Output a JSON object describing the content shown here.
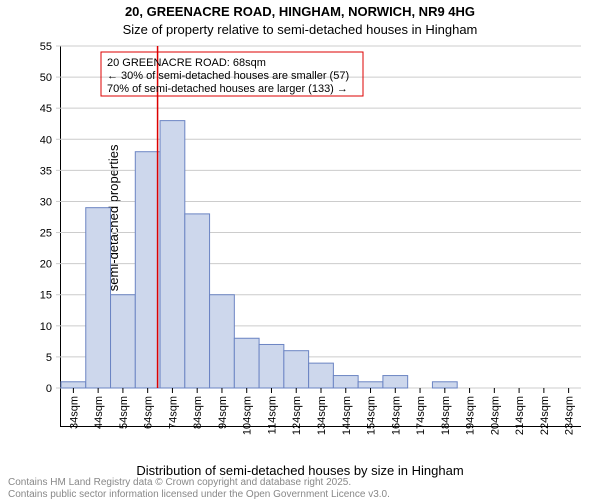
{
  "title": "20, GREENACRE ROAD, HINGHAM, NORWICH, NR9 4HG",
  "subtitle": "Size of property relative to semi-detached houses in Hingham",
  "ylabel": "Number of semi-detached properties",
  "xlabel": "Distribution of semi-detached houses by size in Hingham",
  "attribution1": "Contains HM Land Registry data © Crown copyright and database right 2025.",
  "attribution2": "Contains public sector information licensed under the Open Government Licence v3.0.",
  "chart": {
    "type": "histogram",
    "y": {
      "min": 0,
      "max": 55,
      "step": 5
    },
    "x_categories": [
      "34sqm",
      "44sqm",
      "54sqm",
      "64sqm",
      "74sqm",
      "84sqm",
      "94sqm",
      "104sqm",
      "114sqm",
      "124sqm",
      "134sqm",
      "144sqm",
      "154sqm",
      "164sqm",
      "174sqm",
      "184sqm",
      "194sqm",
      "204sqm",
      "214sqm",
      "224sqm",
      "234sqm"
    ],
    "bars": [
      1,
      29,
      15,
      38,
      43,
      28,
      15,
      8,
      7,
      6,
      4,
      2,
      1,
      2,
      0,
      1,
      0,
      0,
      0,
      0,
      0
    ],
    "bar_fill": "#cdd7ec",
    "bar_stroke": "#6b84c3",
    "grid_color": "#cccccc",
    "background": "#ffffff",
    "marker": {
      "value_sqm": 68,
      "color": "#d00000",
      "box_lines": [
        "20 GREENACRE ROAD: 68sqm",
        "← 30% of semi-detached houses are smaller (57)",
        "70% of semi-detached houses are larger (133) →"
      ]
    }
  }
}
